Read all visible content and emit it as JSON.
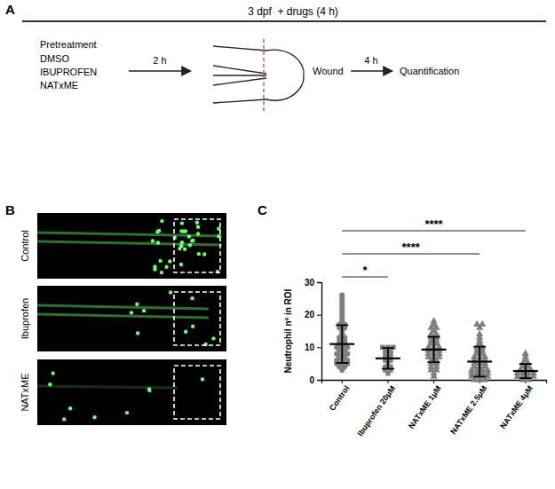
{
  "panel_a": {
    "label": "A",
    "header": "3 dpf  + drugs (4 h)",
    "pretreatment": {
      "title": "Pretreatment",
      "items": [
        "DMSO",
        "IBUPROFEN",
        "NATxME"
      ]
    },
    "steps": [
      "2 h",
      "Wound",
      "4 h",
      "Quantification"
    ]
  },
  "panel_b": {
    "label": "B",
    "rows": [
      "Control",
      "Ibuprofen",
      "NATxME"
    ]
  },
  "chart_data": {
    "type": "scatter",
    "panel_label": "C",
    "ylabel": "Neutrophil nº in ROI",
    "categories": [
      "Control",
      "Ibuprofen 20μM",
      "NATxME 1μM",
      "NATxME 2.5μM",
      "NATxME 4μM"
    ],
    "groups": [
      {
        "marker": "circle",
        "color": "#7f7f7f",
        "mean": 11,
        "sd": 5.8,
        "values": [
          26,
          25,
          24,
          23,
          22,
          21,
          20,
          19,
          18,
          17,
          17,
          16,
          16,
          15,
          14,
          13,
          13,
          12,
          12,
          11,
          11,
          10,
          10,
          10,
          9,
          9,
          8,
          8,
          8,
          7,
          7,
          6,
          6,
          6,
          5,
          5,
          5,
          4,
          4,
          3
        ]
      },
      {
        "marker": "square",
        "color": "#7f7f7f",
        "mean": 6.6,
        "sd": 3.2,
        "values": [
          10,
          10,
          10,
          9,
          9,
          8,
          8,
          7,
          7,
          6,
          6,
          5,
          4,
          4,
          3,
          3,
          2
        ]
      },
      {
        "marker": "triangle",
        "color": "#7f7f7f",
        "mean": 9.3,
        "sd": 3.9,
        "values": [
          18,
          17,
          16,
          16,
          15,
          14,
          14,
          13,
          13,
          12,
          12,
          11,
          11,
          10,
          10,
          10,
          9,
          9,
          9,
          8,
          8,
          8,
          7,
          7,
          7,
          6,
          6,
          5,
          5,
          4,
          4,
          3,
          3,
          2,
          1
        ]
      },
      {
        "marker": "triangle",
        "color": "#7f7f7f",
        "mean": 5.6,
        "sd": 4.6,
        "values": [
          17,
          17,
          16,
          14,
          13,
          12,
          11,
          10,
          10,
          9,
          9,
          8,
          8,
          7,
          7,
          7,
          6,
          6,
          6,
          5,
          5,
          5,
          4,
          4,
          4,
          3,
          3,
          3,
          3,
          2,
          2,
          2,
          2,
          1,
          1,
          1,
          1,
          0,
          0,
          0
        ]
      },
      {
        "marker": "triangle",
        "color": "#7f7f7f",
        "mean": 2.7,
        "sd": 2.2,
        "values": [
          8,
          7,
          6,
          5,
          5,
          4,
          4,
          3,
          3,
          3,
          2,
          2,
          2,
          2,
          1,
          1,
          1,
          1,
          0,
          0
        ]
      }
    ],
    "comparisons": [
      {
        "groups": [
          0,
          1
        ],
        "label": "*"
      },
      {
        "groups": [
          0,
          3
        ],
        "label": "****"
      },
      {
        "groups": [
          0,
          4
        ],
        "label": "****"
      }
    ],
    "ylim": [
      0,
      30
    ],
    "yticks": [
      0,
      10,
      20,
      30
    ],
    "grid": false
  }
}
